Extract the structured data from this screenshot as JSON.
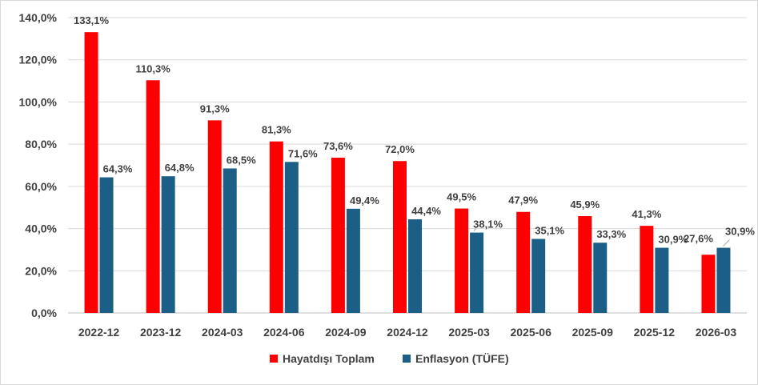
{
  "chart_data": {
    "type": "bar",
    "categories": [
      "2022-12",
      "2023-12",
      "2024-03",
      "2024-06",
      "2024-09",
      "2024-12",
      "2025-03",
      "2025-06",
      "2025-09",
      "2025-12",
      "2026-03"
    ],
    "series": [
      {
        "name": "Hayatdışı Toplam",
        "color": "#ff0000",
        "values": [
          133.1,
          110.3,
          91.3,
          81.3,
          73.6,
          72.0,
          49.5,
          47.9,
          45.9,
          41.3,
          27.6
        ],
        "labels": [
          "133,1%",
          "110,3%",
          "91,3%",
          "81,3%",
          "73,6%",
          "72,0%",
          "49,5%",
          "47,9%",
          "45,9%",
          "41,3%",
          "27,6%"
        ]
      },
      {
        "name": "Enflasyon (TÜFE)",
        "color": "#1b5e86",
        "values": [
          64.3,
          64.8,
          68.5,
          71.6,
          49.4,
          44.4,
          38.1,
          35.1,
          33.3,
          30.9,
          30.9
        ],
        "labels": [
          "64,3%",
          "64,8%",
          "68,5%",
          "71,6%",
          "49,4%",
          "44,4%",
          "38,1%",
          "35,1%",
          "33,3%",
          "30,9%",
          "30,9%"
        ]
      }
    ],
    "ylim": [
      0,
      140
    ],
    "yticks": [
      0,
      20,
      40,
      60,
      80,
      100,
      120,
      140
    ],
    "ytick_labels": [
      "0,0%",
      "20,0%",
      "40,0%",
      "60,0%",
      "80,0%",
      "100,0%",
      "120,0%",
      "140,0%"
    ],
    "grid": true,
    "legend_position": "bottom"
  }
}
